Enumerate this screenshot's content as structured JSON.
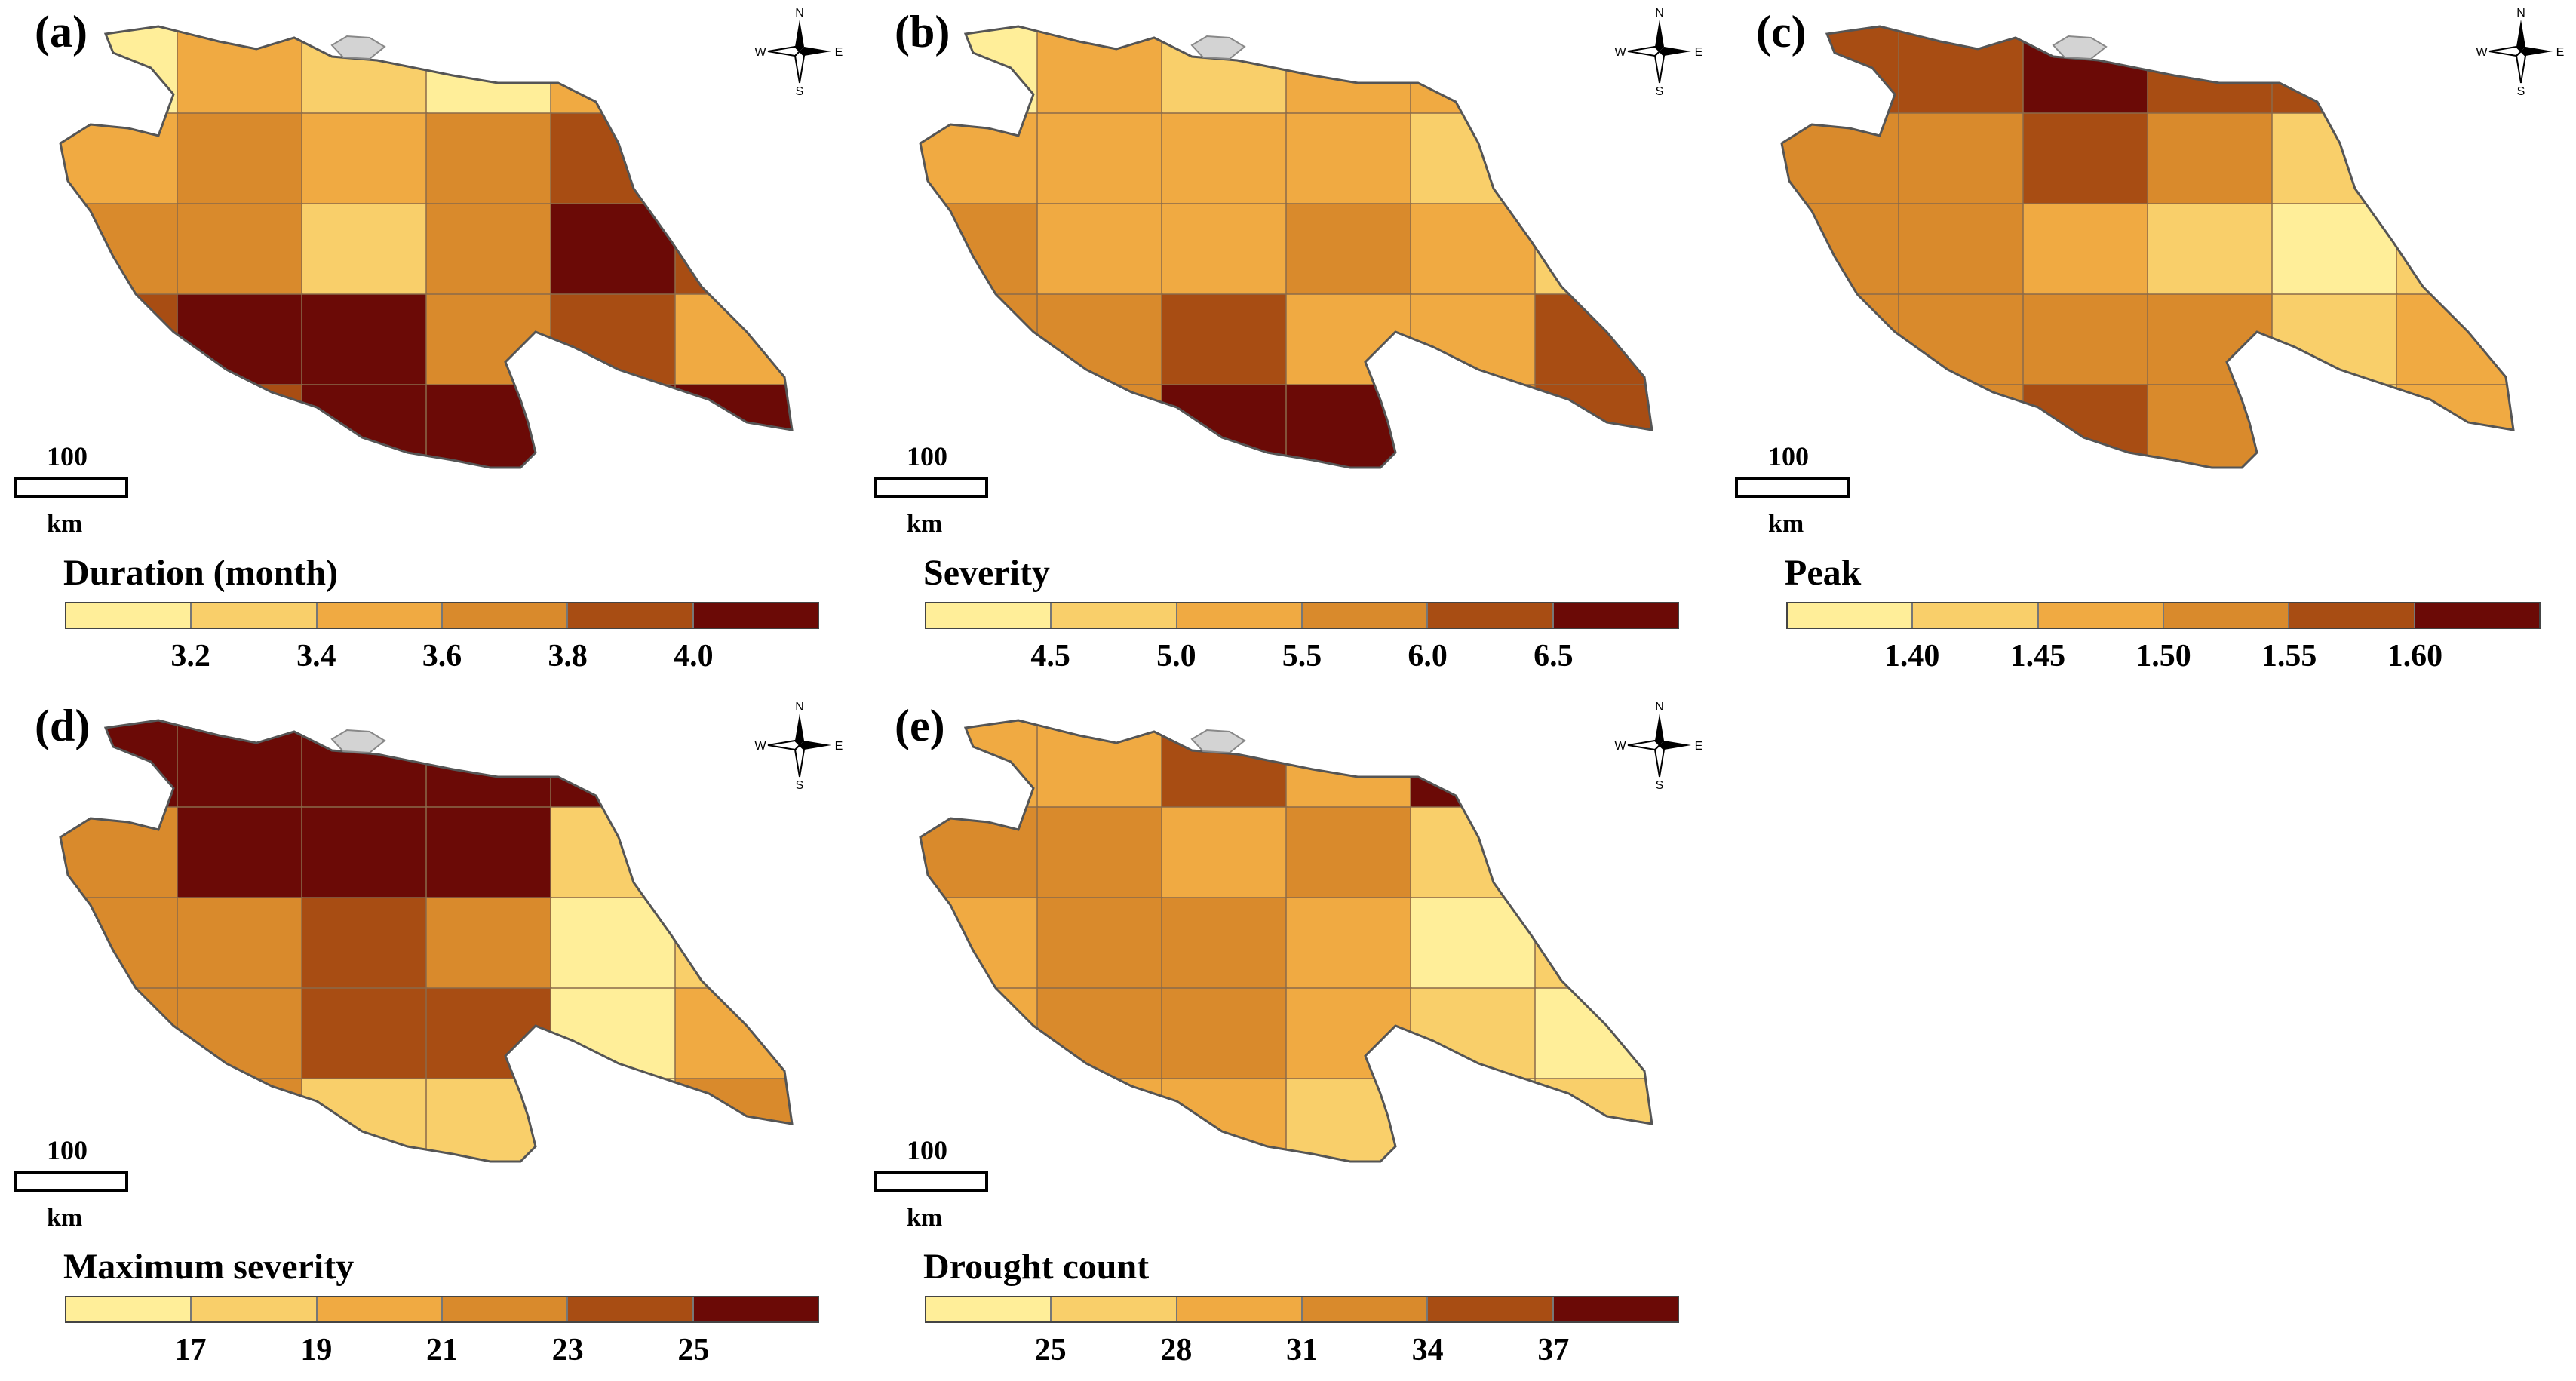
{
  "colors": [
    "#ffee99",
    "#f9cf6a",
    "#f0aa42",
    "#d98a2c",
    "#a84d13",
    "#6b0a06"
  ],
  "nodata_color": "#d3d3d3",
  "compass_labels": {
    "n": "N",
    "s": "S",
    "e": "E",
    "w": "W"
  },
  "scale": {
    "value": "100",
    "unit": "km"
  },
  "panels": [
    {
      "id": "a",
      "letter": "(a)",
      "legend_title": "Duration (month)",
      "ticks": [
        "3.2",
        "3.4",
        "3.6",
        "3.8",
        "4.0"
      ]
    },
    {
      "id": "b",
      "letter": "(b)",
      "legend_title": "Severity",
      "ticks": [
        "4.5",
        "5.0",
        "5.5",
        "6.0",
        "6.5"
      ]
    },
    {
      "id": "c",
      "letter": "(c)",
      "legend_title": "Peak",
      "ticks": [
        "1.40",
        "1.45",
        "1.50",
        "1.55",
        "1.60"
      ]
    },
    {
      "id": "d",
      "letter": "(d)",
      "legend_title": "Maximum severity",
      "ticks": [
        "17",
        "19",
        "21",
        "23",
        "25"
      ]
    },
    {
      "id": "e",
      "letter": "(e)",
      "legend_title": "Drought count",
      "ticks": [
        "25",
        "28",
        "31",
        "34",
        "37"
      ]
    }
  ],
  "class_maps": {
    "a": [
      [
        0,
        2,
        1,
        0,
        2,
        3
      ],
      [
        2,
        3,
        2,
        3,
        4,
        5
      ],
      [
        3,
        3,
        1,
        3,
        5,
        4
      ],
      [
        4,
        5,
        5,
        3,
        4,
        2
      ],
      [
        4,
        4,
        5,
        5,
        5,
        5
      ]
    ],
    "b": [
      [
        0,
        2,
        1,
        2,
        2,
        3
      ],
      [
        2,
        2,
        2,
        2,
        1,
        2
      ],
      [
        3,
        2,
        2,
        3,
        2,
        1
      ],
      [
        3,
        3,
        4,
        2,
        2,
        4
      ],
      [
        3,
        3,
        5,
        5,
        3,
        4
      ]
    ],
    "c": [
      [
        4,
        4,
        5,
        4,
        4,
        5
      ],
      [
        3,
        3,
        4,
        3,
        1,
        2
      ],
      [
        3,
        3,
        2,
        1,
        0,
        1
      ],
      [
        3,
        3,
        3,
        3,
        1,
        2
      ],
      [
        3,
        3,
        4,
        3,
        1,
        2
      ]
    ],
    "d": [
      [
        5,
        5,
        5,
        5,
        5,
        3
      ],
      [
        3,
        5,
        5,
        5,
        1,
        0
      ],
      [
        3,
        3,
        4,
        3,
        0,
        1
      ],
      [
        3,
        3,
        4,
        4,
        0,
        2
      ],
      [
        3,
        3,
        1,
        1,
        0,
        3
      ]
    ],
    "e": [
      [
        2,
        2,
        4,
        2,
        5,
        2
      ],
      [
        3,
        3,
        2,
        3,
        1,
        0
      ],
      [
        2,
        3,
        3,
        2,
        0,
        1
      ],
      [
        2,
        3,
        3,
        2,
        1,
        0
      ],
      [
        2,
        2,
        2,
        1,
        0,
        1
      ]
    ]
  }
}
